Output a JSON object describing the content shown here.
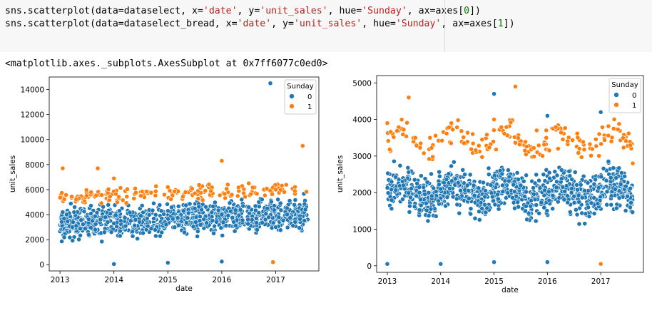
{
  "code_cell": {
    "line1": {
      "fn": "sns.scatterplot(data=dataselect, x=",
      "x": "'date'",
      "sep1": ", y=",
      "y": "'unit_sales'",
      "sep2": ", hue=",
      "hue": "'Sunday'",
      "sep3": ", ax=axes[",
      "idx": "0",
      "end": "])"
    },
    "line2": {
      "fn": "sns.scatterplot(data=dataselect_bread, x=",
      "x": "'date'",
      "sep1": ", y=",
      "y": "'unit_sales'",
      "sep2": ", hue=",
      "hue": "'Sunday'",
      "sep3": ", ax=axes[",
      "idx": "1",
      "end": "])"
    }
  },
  "output_repr": "<matplotlib.axes._subplots.AxesSubplot at 0x7ff6077c0ed0>",
  "colors": {
    "sunday_0": "#1f77b4",
    "sunday_1": "#ff7f0e"
  },
  "chart_data": [
    {
      "type": "scatter",
      "xlabel": "date",
      "ylabel": "unit_sales",
      "ylim": [
        0,
        14500
      ],
      "x_ticks": [
        "2013",
        "2014",
        "2015",
        "2016",
        "2017"
      ],
      "y_ticks": [
        "0",
        "2000",
        "4000",
        "6000",
        "8000",
        "10000",
        "12000",
        "14000"
      ],
      "legend": {
        "title": "Sunday",
        "position": "top-right",
        "entries": [
          "0",
          "1"
        ]
      },
      "series": [
        {
          "name": "0",
          "points": [
            [
              2013.05,
              4200
            ],
            [
              2013.3,
              3100
            ],
            [
              2013.6,
              3500
            ],
            [
              2014.0,
              3300
            ],
            [
              2014.0,
              50
            ],
            [
              2014.5,
              3900
            ],
            [
              2015.0,
              4300
            ],
            [
              2015.0,
              150
            ],
            [
              2015.5,
              4500
            ],
            [
              2016.0,
              4000
            ],
            [
              2016.0,
              250
            ],
            [
              2016.5,
              4600
            ],
            [
              2016.9,
              14500
            ],
            [
              2017.0,
              3000
            ],
            [
              2017.55,
              4400
            ]
          ]
        },
        {
          "name": "1",
          "points": [
            [
              2013.05,
              7700
            ],
            [
              2013.3,
              5200
            ],
            [
              2013.7,
              7700
            ],
            [
              2014.0,
              6900
            ],
            [
              2014.5,
              5500
            ],
            [
              2015.0,
              6200
            ],
            [
              2015.5,
              5700
            ],
            [
              2016.0,
              8300
            ],
            [
              2016.5,
              6500
            ],
            [
              2016.95,
              200
            ],
            [
              2017.0,
              6000
            ],
            [
              2017.5,
              9500
            ]
          ]
        }
      ]
    },
    {
      "type": "scatter",
      "xlabel": "date",
      "ylabel": "unit_sales",
      "ylim": [
        0,
        5000
      ],
      "x_ticks": [
        "2013",
        "2014",
        "2015",
        "2016",
        "2017"
      ],
      "y_ticks": [
        "0",
        "1000",
        "2000",
        "3000",
        "4000",
        "5000"
      ],
      "legend": {
        "title": "Sunday",
        "position": "top-right",
        "entries": [
          "0",
          "1"
        ]
      },
      "series": [
        {
          "name": "0",
          "points": [
            [
              2013.0,
              50
            ],
            [
              2013.3,
              2200
            ],
            [
              2013.6,
              2000
            ],
            [
              2014.0,
              2100
            ],
            [
              2014.0,
              50
            ],
            [
              2014.5,
              2200
            ],
            [
              2015.0,
              4700
            ],
            [
              2015.0,
              100
            ],
            [
              2015.5,
              2200
            ],
            [
              2016.0,
              4100
            ],
            [
              2016.0,
              100
            ],
            [
              2016.5,
              1900
            ],
            [
              2017.0,
              4200
            ],
            [
              2017.5,
              1900
            ]
          ]
        },
        {
          "name": "1",
          "points": [
            [
              2013.0,
              3900
            ],
            [
              2013.4,
              4600
            ],
            [
              2013.8,
              3500
            ],
            [
              2014.2,
              3900
            ],
            [
              2014.6,
              3600
            ],
            [
              2015.0,
              4000
            ],
            [
              2015.4,
              4900
            ],
            [
              2015.8,
              3700
            ],
            [
              2016.2,
              3200
            ],
            [
              2016.6,
              3200
            ],
            [
              2017.0,
              50
            ],
            [
              2017.2,
              3400
            ],
            [
              2017.6,
              2800
            ]
          ]
        }
      ]
    }
  ]
}
